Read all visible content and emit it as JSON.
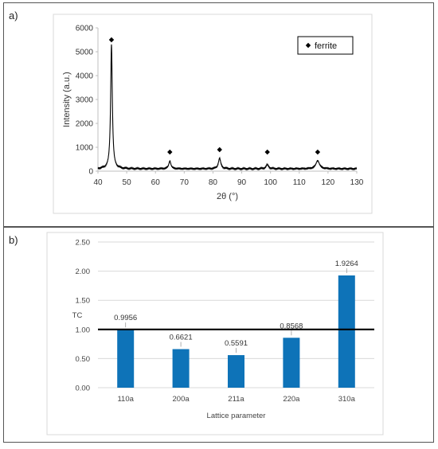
{
  "panels": {
    "a": {
      "label": "a)"
    },
    "b": {
      "label": "b)"
    }
  },
  "chart_data": [
    {
      "type": "line",
      "title": "",
      "xlabel": "2θ (°)",
      "ylabel": "Intensity (a.u.)",
      "xlim": [
        40,
        130
      ],
      "ylim": [
        0,
        6000
      ],
      "xticks": [
        40,
        50,
        60,
        70,
        80,
        90,
        100,
        110,
        120,
        130
      ],
      "yticks": [
        0,
        1000,
        2000,
        3000,
        4000,
        5000,
        6000
      ],
      "grid": false,
      "baseline": 100,
      "series": [
        {
          "peaks": [
            {
              "x": 44.7,
              "y": 5200,
              "width": 0.35
            },
            {
              "x": 65.0,
              "y": 320,
              "width": 0.45
            },
            {
              "x": 82.3,
              "y": 440,
              "width": 0.5
            },
            {
              "x": 98.9,
              "y": 170,
              "width": 0.55
            },
            {
              "x": 116.4,
              "y": 340,
              "width": 0.75
            }
          ]
        }
      ],
      "markers": {
        "name": "ferrite",
        "symbol": "diamond",
        "points": [
          {
            "x": 44.7,
            "y": 5500
          },
          {
            "x": 65.0,
            "y": 800
          },
          {
            "x": 82.3,
            "y": 900
          },
          {
            "x": 98.9,
            "y": 800
          },
          {
            "x": 116.4,
            "y": 800
          }
        ]
      },
      "legend": {
        "position": "top-right",
        "entries": [
          "ferrite"
        ]
      },
      "colors": {
        "line": "#000000",
        "marker": "#000000",
        "axis": "#bfbfbf"
      }
    },
    {
      "type": "bar",
      "title": "",
      "xlabel": "Lattice parameter",
      "ylabel": "TC",
      "categories": [
        "110a",
        "200a",
        "211a",
        "220a",
        "310a"
      ],
      "values": [
        0.9956,
        0.6621,
        0.5591,
        0.8568,
        1.9264
      ],
      "data_labels": [
        "0.9956",
        "0.6621",
        "0.5591",
        "0.8568",
        "1.9264"
      ],
      "ylim": [
        0,
        2.5
      ],
      "yticks": [
        "0.00",
        "0.50",
        "1.00",
        "1.50",
        "2.00",
        "2.50"
      ],
      "reference_line": 1.0,
      "grid": true,
      "colors": {
        "bar": "#0e73b8",
        "grid": "#d9d9d9",
        "reference": "#000000"
      }
    }
  ]
}
